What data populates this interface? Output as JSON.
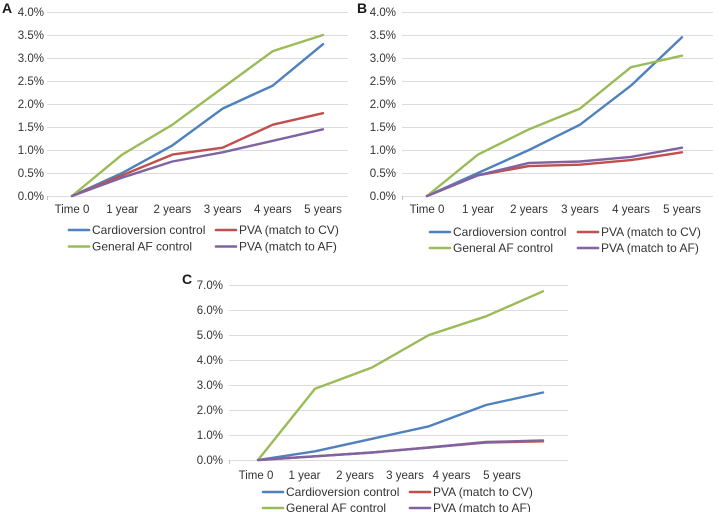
{
  "figure": {
    "description": "Three-panel line chart figure comparing cumulative event rates over five years",
    "style": {
      "background_color": "#FFFFFF",
      "gridline_color": "#DCDCDC",
      "axis_tick_color": "#BFBFBF",
      "text_color": "#333333",
      "panel_letter_color": "#1A1A1A"
    }
  },
  "chart_data": [
    {
      "panel": "A",
      "type": "line",
      "title": "",
      "xlabel": "",
      "ylabel": "",
      "grid": "horizontal",
      "legend_position": "bottom-two-columns",
      "categories": [
        "Time 0",
        "1 year",
        "2 years",
        "3 years",
        "4 years",
        "5 years"
      ],
      "y_axis": {
        "min": 0,
        "max": 4.0,
        "step": 0.5,
        "tick_suffix": "%",
        "tick_decimals": 1
      },
      "series": [
        {
          "name": "Cardioversion control",
          "color": "#4F81BD",
          "values": [
            0,
            0.5,
            1.1,
            1.9,
            2.4,
            3.3
          ]
        },
        {
          "name": "PVA (match to CV)",
          "color": "#C0504D",
          "values": [
            0,
            0.45,
            0.9,
            1.05,
            1.55,
            1.8
          ]
        },
        {
          "name": "General AF control",
          "color": "#9BBB59",
          "values": [
            0,
            0.9,
            1.55,
            2.35,
            3.15,
            3.5
          ]
        },
        {
          "name": "PVA (match to AF)",
          "color": "#8064A2",
          "values": [
            0,
            0.4,
            0.75,
            0.95,
            1.2,
            1.45
          ]
        }
      ]
    },
    {
      "panel": "B",
      "type": "line",
      "title": "",
      "xlabel": "",
      "ylabel": "",
      "grid": "horizontal",
      "legend_position": "bottom-two-columns",
      "categories": [
        "Time 0",
        "1 year",
        "2 years",
        "3 years",
        "4 years",
        "5 years"
      ],
      "y_axis": {
        "min": 0,
        "max": 4.0,
        "step": 0.5,
        "tick_suffix": "%",
        "tick_decimals": 1
      },
      "series": [
        {
          "name": "Cardioversion control",
          "color": "#4F81BD",
          "values": [
            0,
            0.5,
            1.0,
            1.55,
            2.4,
            3.45
          ]
        },
        {
          "name": "PVA (match to CV)",
          "color": "#C0504D",
          "values": [
            0,
            0.45,
            0.65,
            0.68,
            0.78,
            0.95
          ]
        },
        {
          "name": "General AF control",
          "color": "#9BBB59",
          "values": [
            0,
            0.9,
            1.45,
            1.9,
            2.8,
            3.05
          ]
        },
        {
          "name": "PVA (match to AF)",
          "color": "#8064A2",
          "values": [
            0,
            0.45,
            0.72,
            0.75,
            0.85,
            1.05
          ]
        }
      ]
    },
    {
      "panel": "C",
      "type": "line",
      "title": "",
      "xlabel": "",
      "ylabel": "",
      "grid": "horizontal",
      "legend_position": "bottom-two-columns",
      "categories": [
        "Time 0",
        "1 year",
        "2 years",
        "3 years",
        "4 years",
        "5 years"
      ],
      "y_axis": {
        "min": 0,
        "max": 7.0,
        "step": 1.0,
        "tick_suffix": "%",
        "tick_decimals": 1
      },
      "series": [
        {
          "name": "Cardioversion control",
          "color": "#4F81BD",
          "values": [
            0,
            0.35,
            0.85,
            1.35,
            2.2,
            2.7
          ]
        },
        {
          "name": "PVA (match to CV)",
          "color": "#C0504D",
          "values": [
            0,
            0.15,
            0.3,
            0.5,
            0.7,
            0.75
          ]
        },
        {
          "name": "General AF control",
          "color": "#9BBB59",
          "values": [
            0,
            2.85,
            3.7,
            5.0,
            5.75,
            6.75
          ]
        },
        {
          "name": "PVA (match to AF)",
          "color": "#8064A2",
          "values": [
            0,
            0.15,
            0.3,
            0.5,
            0.72,
            0.78
          ]
        }
      ]
    }
  ]
}
